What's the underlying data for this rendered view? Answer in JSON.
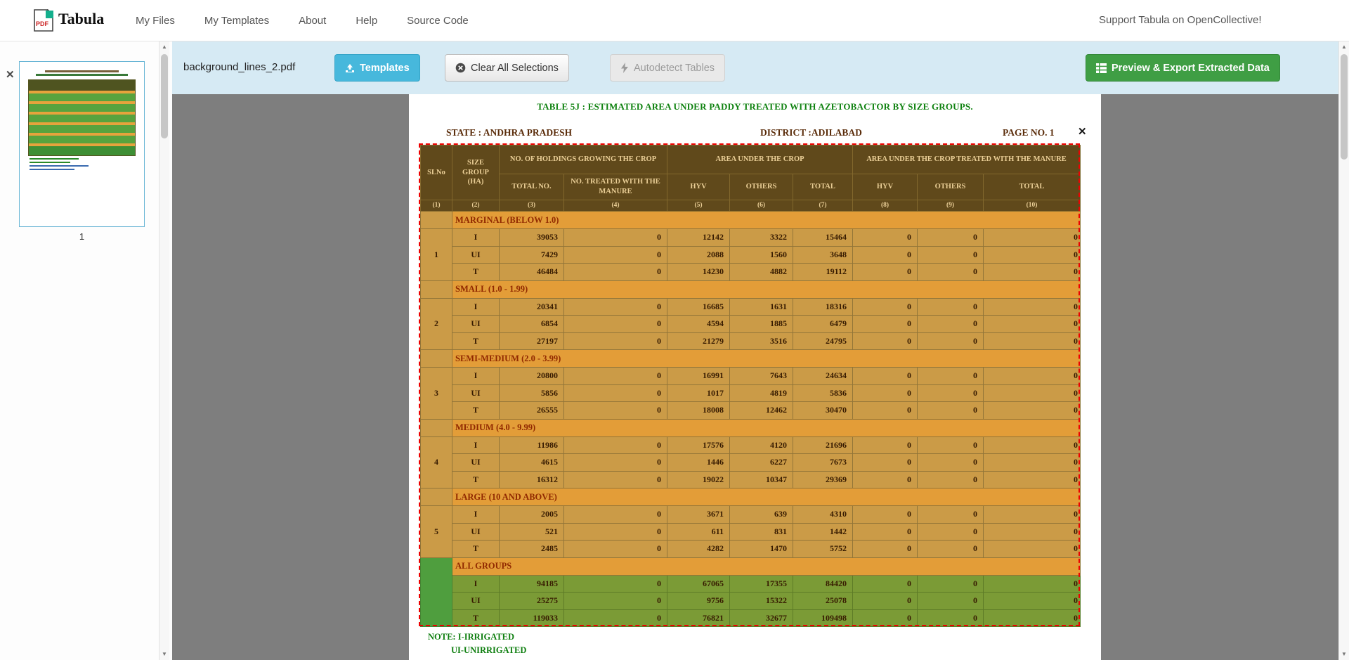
{
  "navbar": {
    "brand": "Tabula",
    "links": [
      "My Files",
      "My Templates",
      "About",
      "Help",
      "Source Code"
    ],
    "support": "Support Tabula on OpenCollective!"
  },
  "toolbar": {
    "filename": "background_lines_2.pdf",
    "templates": "Templates",
    "clear": "Clear All Selections",
    "autodetect": "Autodetect Tables",
    "export": "Preview & Export Extracted Data"
  },
  "sidebar": {
    "page_number": "1"
  },
  "icons": {
    "scroll_up": "▲",
    "scroll_down": "▼",
    "remove_page_x": "✕",
    "remove_selection_x": "✕"
  },
  "document": {
    "title": "TABLE 5J : ESTIMATED AREA UNDER PADDY  TREATED WITH AZETOBACTOR BY SIZE GROUPS.",
    "state_line": "STATE :  ANDHRA PRADESH",
    "district_line": "DISTRICT :ADILABAD",
    "page_line": "PAGE NO. 1",
    "note1": "NOTE: I-IRRIGATED",
    "note2": "UI-UNIRRIGATED",
    "table": {
      "header": {
        "col1": "SLNo",
        "col2": "SIZE GROUP (HA)",
        "group1": "NO. OF HOLDINGS GROWING THE CROP",
        "group2": "AREA UNDER THE CROP",
        "group3": "AREA UNDER THE CROP TREATED WITH THE  MANURE",
        "sub": [
          "TOTAL NO.",
          "NO. TREATED WITH THE MANURE",
          "HYV",
          "OTHERS",
          "TOTAL",
          "HYV",
          "OTHERS",
          "TOTAL"
        ],
        "nums": [
          "(1)",
          "(2)",
          "(3)",
          "(4)",
          "(5)",
          "(6)",
          "(7)",
          "(8)",
          "(9)",
          "(10)"
        ]
      },
      "groups": [
        {
          "sl": "1",
          "name": "MARGINAL (BELOW 1.0)",
          "all_groups": false,
          "rows": [
            [
              "I",
              "39053",
              "0",
              "12142",
              "3322",
              "15464",
              "0",
              "0",
              "0"
            ],
            [
              "UI",
              "7429",
              "0",
              "2088",
              "1560",
              "3648",
              "0",
              "0",
              "0"
            ],
            [
              "T",
              "46484",
              "0",
              "14230",
              "4882",
              "19112",
              "0",
              "0",
              "0"
            ]
          ]
        },
        {
          "sl": "2",
          "name": "SMALL (1.0 - 1.99)",
          "all_groups": false,
          "rows": [
            [
              "I",
              "20341",
              "0",
              "16685",
              "1631",
              "18316",
              "0",
              "0",
              "0"
            ],
            [
              "UI",
              "6854",
              "0",
              "4594",
              "1885",
              "6479",
              "0",
              "0",
              "0"
            ],
            [
              "T",
              "27197",
              "0",
              "21279",
              "3516",
              "24795",
              "0",
              "0",
              "0"
            ]
          ]
        },
        {
          "sl": "3",
          "name": "SEMI-MEDIUM (2.0 - 3.99)",
          "all_groups": false,
          "rows": [
            [
              "I",
              "20800",
              "0",
              "16991",
              "7643",
              "24634",
              "0",
              "0",
              "0"
            ],
            [
              "UI",
              "5856",
              "0",
              "1017",
              "4819",
              "5836",
              "0",
              "0",
              "0"
            ],
            [
              "T",
              "26555",
              "0",
              "18008",
              "12462",
              "30470",
              "0",
              "0",
              "0"
            ]
          ]
        },
        {
          "sl": "4",
          "name": "MEDIUM (4.0 - 9.99)",
          "all_groups": false,
          "rows": [
            [
              "I",
              "11986",
              "0",
              "17576",
              "4120",
              "21696",
              "0",
              "0",
              "0"
            ],
            [
              "UI",
              "4615",
              "0",
              "1446",
              "6227",
              "7673",
              "0",
              "0",
              "0"
            ],
            [
              "T",
              "16312",
              "0",
              "19022",
              "10347",
              "29369",
              "0",
              "0",
              "0"
            ]
          ]
        },
        {
          "sl": "5",
          "name": "LARGE (10 AND ABOVE)",
          "all_groups": false,
          "rows": [
            [
              "I",
              "2005",
              "0",
              "3671",
              "639",
              "4310",
              "0",
              "0",
              "0"
            ],
            [
              "UI",
              "521",
              "0",
              "611",
              "831",
              "1442",
              "0",
              "0",
              "0"
            ],
            [
              "T",
              "2485",
              "0",
              "4282",
              "1470",
              "5752",
              "0",
              "0",
              "0"
            ]
          ]
        },
        {
          "sl": "",
          "name": "ALL GROUPS",
          "all_groups": true,
          "rows": [
            [
              "I",
              "94185",
              "0",
              "67065",
              "17355",
              "84420",
              "0",
              "0",
              "0"
            ],
            [
              "UI",
              "25275",
              "0",
              "9756",
              "15322",
              "25078",
              "0",
              "0",
              "0"
            ],
            [
              "T",
              "119033",
              "0",
              "76821",
              "32677",
              "109498",
              "0",
              "0",
              "0"
            ]
          ]
        }
      ]
    }
  }
}
